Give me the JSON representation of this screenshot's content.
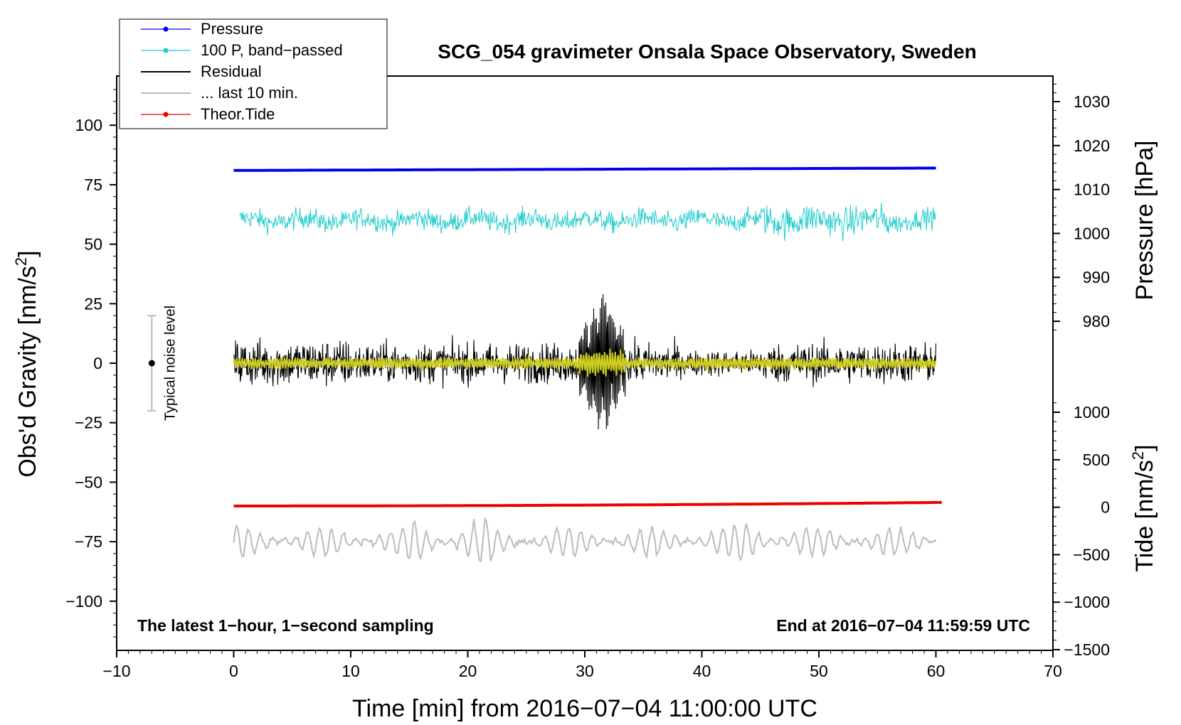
{
  "chart_data": {
    "type": "line",
    "title": "SCG_054 gravimeter Onsala Space Observatory, Sweden",
    "xlabel": "Time [min] from 2016−07−04 11:00:00 UTC",
    "ylabel_left": "Obs'd Gravity [nm/s",
    "ylabel_sup": "2",
    "ylabel_left_close": "]",
    "ylabel_right_pressure": "Pressure [hPa]",
    "ylabel_right_tide": "Tide [nm/s",
    "ylabel_right_tide_close": "]",
    "xlim": [
      -10,
      70
    ],
    "ylim": [
      -120,
      120
    ],
    "x_ticks": [
      "−10",
      "0",
      "10",
      "20",
      "30",
      "40",
      "50",
      "60",
      "70"
    ],
    "x_tick_values": [
      -10,
      0,
      10,
      20,
      30,
      40,
      50,
      60,
      70
    ],
    "y_ticks": [
      "100",
      "75",
      "50",
      "25",
      "0",
      "−25",
      "−50",
      "−75",
      "−100"
    ],
    "y_tick_values": [
      100,
      75,
      50,
      25,
      0,
      -25,
      -50,
      -75,
      -100
    ],
    "pressure_ticks": [
      "1030",
      "1020",
      "1010",
      "1000",
      "990",
      "980"
    ],
    "pressure_tick_values": [
      1030,
      1020,
      1010,
      1000,
      990,
      980
    ],
    "tide_ticks": [
      "1000",
      "500",
      "0",
      "−500",
      "−1000",
      "−1500"
    ],
    "tide_tick_values": [
      1000,
      500,
      0,
      -500,
      -1000,
      -1500
    ],
    "legend": [
      {
        "label": "Pressure",
        "color": "#0000ee",
        "marker": true
      },
      {
        "label": "100 P, band−passed",
        "color": "#22cccc",
        "marker": true
      },
      {
        "label": "Residual",
        "color": "#000000",
        "marker": false
      },
      {
        "label": "... last 10 min.",
        "color": "#bbbbbb",
        "marker": false
      },
      {
        "label": "Theor.Tide",
        "color": "#ee0000",
        "marker": true
      }
    ],
    "series": [
      {
        "name": "Pressure",
        "color": "#0000ee",
        "description": "nearly constant line",
        "x": [
          0,
          60
        ],
        "values": [
          81,
          82
        ]
      },
      {
        "name": "100 P, band−passed",
        "color": "#22cccc",
        "x_range": [
          0.5,
          60
        ],
        "center": 60,
        "amplitude": 6
      },
      {
        "name": "Residual",
        "color": "#000000",
        "x_range": [
          0,
          60
        ],
        "center": 0,
        "amplitude": 8,
        "burst_window_min": [
          29.5,
          33.5
        ],
        "burst_peak": 32
      },
      {
        "name": "Residual (smoothed)",
        "color": "#cccc22",
        "x_range": [
          0,
          60
        ],
        "center": 0,
        "amplitude": 4
      },
      {
        "name": "Theor.Tide",
        "color": "#ee0000",
        "x": [
          0,
          60.5
        ],
        "values": [
          -60,
          -58.5
        ]
      },
      {
        "name": "... last 10 min.",
        "color": "#bbbbbb",
        "x_range": [
          0,
          60
        ],
        "center": -75,
        "amplitude": 6
      }
    ],
    "noise_bar": {
      "x": -7,
      "center": 0,
      "low": -20,
      "high": 20,
      "label": "Typical noise level"
    },
    "annotation_left": "The latest 1−hour, 1−second sampling",
    "annotation_right": "End at 2016−07−04 11:59:59 UTC"
  }
}
